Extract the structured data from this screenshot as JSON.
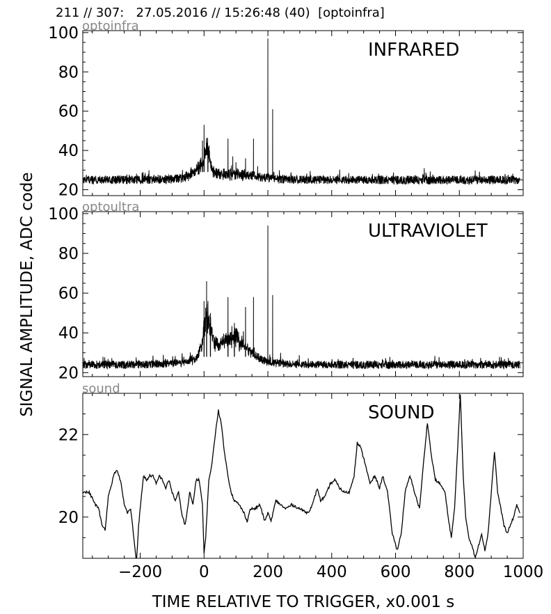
{
  "header": "211 // 307:   27.05.2016 // 15:26:48 (40)  [optoinfra]",
  "chart_data": {
    "type": "line",
    "ylabel": "SIGNAL AMPLITUDE,  ADC code",
    "xlabel": "TIME RELATIVE TO TRIGGER,   x0.001 s",
    "xlim": [
      -380,
      1000
    ],
    "xticks": [
      -200,
      0,
      200,
      400,
      600,
      800,
      1000
    ],
    "xtick_labels": [
      "−200",
      "0",
      "200",
      "400",
      "600",
      "800",
      "1000"
    ],
    "panels": [
      {
        "name": "INFRARED",
        "channel": "optoinfra",
        "ylim": [
          17,
          101
        ],
        "yticks": [
          20,
          40,
          60,
          80,
          100
        ],
        "baseline": 25,
        "noise": 2.2,
        "features": [
          {
            "x": -10,
            "width": 30,
            "height": 5
          },
          {
            "x": 10,
            "width": 12,
            "height": 10
          },
          {
            "x": 70,
            "width": 120,
            "height": 3
          }
        ],
        "spikes": [
          {
            "x": 0,
            "y": 53
          },
          {
            "x": -5,
            "y": 45
          },
          {
            "x": 12,
            "y": 42
          },
          {
            "x": 75,
            "y": 46
          },
          {
            "x": 90,
            "y": 37
          },
          {
            "x": 100,
            "y": 34
          },
          {
            "x": 130,
            "y": 36
          },
          {
            "x": 155,
            "y": 46
          },
          {
            "x": 168,
            "y": 32
          },
          {
            "x": 200,
            "y": 97
          },
          {
            "x": 215,
            "y": 61
          },
          {
            "x": 690,
            "y": 31
          }
        ]
      },
      {
        "name": "ULTRAVIOLET",
        "channel": "optoultra",
        "ylim": [
          18,
          101
        ],
        "yticks": [
          20,
          40,
          60,
          80,
          100
        ],
        "baseline": 24,
        "noise": 2.0,
        "features": [
          {
            "x": 10,
            "width": 18,
            "height": 18
          },
          {
            "x": 90,
            "width": 60,
            "height": 10
          },
          {
            "x": 60,
            "width": 130,
            "height": 4
          }
        ],
        "spikes": [
          {
            "x": 0,
            "y": 56
          },
          {
            "x": 8,
            "y": 66
          },
          {
            "x": 20,
            "y": 50
          },
          {
            "x": 75,
            "y": 58
          },
          {
            "x": 95,
            "y": 45
          },
          {
            "x": 130,
            "y": 53
          },
          {
            "x": 155,
            "y": 58
          },
          {
            "x": 200,
            "y": 94
          },
          {
            "x": 215,
            "y": 59
          },
          {
            "x": 240,
            "y": 30
          }
        ]
      },
      {
        "name": "SOUND",
        "channel": "sound",
        "ylim": [
          19.0,
          23.0
        ],
        "yticks": [
          20,
          22
        ],
        "points": [
          [
            -380,
            20.6
          ],
          [
            -360,
            20.6
          ],
          [
            -340,
            20.3
          ],
          [
            -330,
            20.2
          ],
          [
            -320,
            19.8
          ],
          [
            -310,
            19.7
          ],
          [
            -300,
            20.5
          ],
          [
            -290,
            20.8
          ],
          [
            -280,
            21.1
          ],
          [
            -270,
            21.1
          ],
          [
            -260,
            20.8
          ],
          [
            -250,
            20.3
          ],
          [
            -240,
            20.1
          ],
          [
            -230,
            20.2
          ],
          [
            -220,
            19.5
          ],
          [
            -212,
            18.9
          ],
          [
            -205,
            19.8
          ],
          [
            -200,
            20.2
          ],
          [
            -190,
            21.0
          ],
          [
            -180,
            20.9
          ],
          [
            -170,
            21.0
          ],
          [
            -160,
            21.0
          ],
          [
            -150,
            20.8
          ],
          [
            -140,
            21.0
          ],
          [
            -130,
            20.9
          ],
          [
            -120,
            20.7
          ],
          [
            -110,
            20.9
          ],
          [
            -100,
            20.6
          ],
          [
            -90,
            20.4
          ],
          [
            -80,
            20.6
          ],
          [
            -70,
            20.1
          ],
          [
            -60,
            19.8
          ],
          [
            -55,
            20.0
          ],
          [
            -45,
            20.6
          ],
          [
            -35,
            20.3
          ],
          [
            -25,
            20.9
          ],
          [
            -15,
            20.9
          ],
          [
            -5,
            20.3
          ],
          [
            0,
            19.1
          ],
          [
            5,
            19.5
          ],
          [
            15,
            20.9
          ],
          [
            25,
            21.3
          ],
          [
            35,
            22.0
          ],
          [
            45,
            22.6
          ],
          [
            55,
            22.2
          ],
          [
            65,
            21.5
          ],
          [
            75,
            21.0
          ],
          [
            85,
            20.6
          ],
          [
            95,
            20.4
          ],
          [
            110,
            20.3
          ],
          [
            125,
            20.1
          ],
          [
            135,
            19.9
          ],
          [
            145,
            20.2
          ],
          [
            160,
            20.2
          ],
          [
            175,
            20.3
          ],
          [
            190,
            19.9
          ],
          [
            200,
            20.1
          ],
          [
            210,
            19.9
          ],
          [
            225,
            20.4
          ],
          [
            240,
            20.3
          ],
          [
            255,
            20.2
          ],
          [
            275,
            20.3
          ],
          [
            300,
            20.2
          ],
          [
            325,
            20.1
          ],
          [
            340,
            20.3
          ],
          [
            355,
            20.7
          ],
          [
            365,
            20.4
          ],
          [
            380,
            20.5
          ],
          [
            395,
            20.8
          ],
          [
            410,
            20.9
          ],
          [
            425,
            20.7
          ],
          [
            440,
            20.6
          ],
          [
            455,
            20.6
          ],
          [
            470,
            21.0
          ],
          [
            480,
            21.8
          ],
          [
            490,
            21.7
          ],
          [
            505,
            21.3
          ],
          [
            520,
            20.8
          ],
          [
            535,
            21.0
          ],
          [
            550,
            20.7
          ],
          [
            560,
            21.0
          ],
          [
            575,
            20.6
          ],
          [
            590,
            19.6
          ],
          [
            605,
            19.2
          ],
          [
            618,
            19.6
          ],
          [
            630,
            20.6
          ],
          [
            645,
            21.0
          ],
          [
            660,
            20.6
          ],
          [
            675,
            20.2
          ],
          [
            690,
            21.5
          ],
          [
            700,
            22.3
          ],
          [
            712,
            21.5
          ],
          [
            725,
            20.9
          ],
          [
            740,
            20.8
          ],
          [
            755,
            20.6
          ],
          [
            765,
            20.0
          ],
          [
            775,
            19.5
          ],
          [
            785,
            20.2
          ],
          [
            795,
            21.7
          ],
          [
            803,
            23.0
          ],
          [
            812,
            21.0
          ],
          [
            820,
            20.0
          ],
          [
            830,
            19.5
          ],
          [
            840,
            19.3
          ],
          [
            850,
            19.0
          ],
          [
            860,
            19.3
          ],
          [
            870,
            19.6
          ],
          [
            880,
            19.2
          ],
          [
            890,
            19.6
          ],
          [
            900,
            20.6
          ],
          [
            910,
            21.6
          ],
          [
            920,
            20.6
          ],
          [
            930,
            20.2
          ],
          [
            940,
            19.8
          ],
          [
            950,
            19.6
          ],
          [
            960,
            19.8
          ],
          [
            970,
            20.0
          ],
          [
            980,
            20.3
          ],
          [
            990,
            20.1
          ]
        ]
      }
    ]
  }
}
